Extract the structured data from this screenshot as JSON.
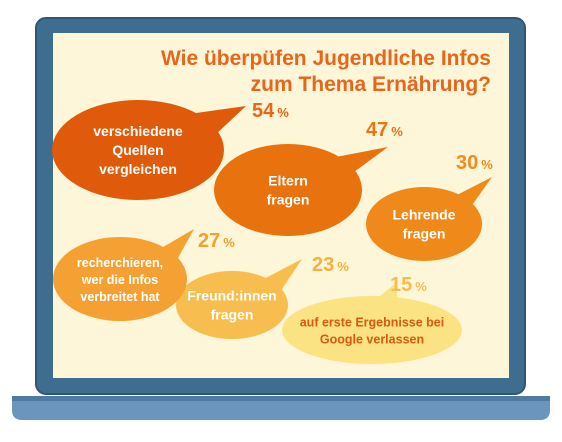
{
  "chart_data": {
    "type": "bubble",
    "title_lines": [
      "Wie überpüfen Jugendliche Infos",
      "zum Thema Ernährung?"
    ],
    "unit": "%",
    "items": [
      {
        "label_lines": [
          "verschiedene",
          "Quellen",
          "vergleichen"
        ],
        "value": 54,
        "value_text": "54",
        "fill": "#e05a0c",
        "text_color": "#ffffff",
        "pct_color": "#e8651a"
      },
      {
        "label_lines": [
          "Eltern",
          "fragen"
        ],
        "value": 47,
        "value_text": "47",
        "fill": "#e8720e",
        "text_color": "#ffffff",
        "pct_color": "#ea7415"
      },
      {
        "label_lines": [
          "Lehrende",
          "fragen"
        ],
        "value": 30,
        "value_text": "30",
        "fill": "#ef8a1a",
        "text_color": "#ffffff",
        "pct_color": "#f08c1f"
      },
      {
        "label_lines": [
          "recherchieren,",
          "wer die Infos",
          "verbreitet hat"
        ],
        "value": 27,
        "value_text": "27",
        "fill": "#f5a033",
        "text_color": "#ffffff",
        "pct_color": "#f3a12e"
      },
      {
        "label_lines": [
          "Freund:innen",
          "fragen"
        ],
        "value": 23,
        "value_text": "23",
        "fill": "#f7bd4e",
        "text_color": "#ffffff",
        "pct_color": "#f5b03e"
      },
      {
        "label_lines": [
          "auf erste Ergebnisse bei",
          "Google verlassen"
        ],
        "value": 15,
        "value_text": "15",
        "fill": "#fbe282",
        "text_color": "#d95a10",
        "pct_color": "#f7bd4e"
      }
    ]
  },
  "colors": {
    "screen_bg": "#fdf6d8",
    "bezel": "#3f6d90",
    "bezel_edge": "#2f5675",
    "base": "#6b95bd",
    "base_shadow": "#4f7aa3",
    "title": "#e8651a"
  }
}
